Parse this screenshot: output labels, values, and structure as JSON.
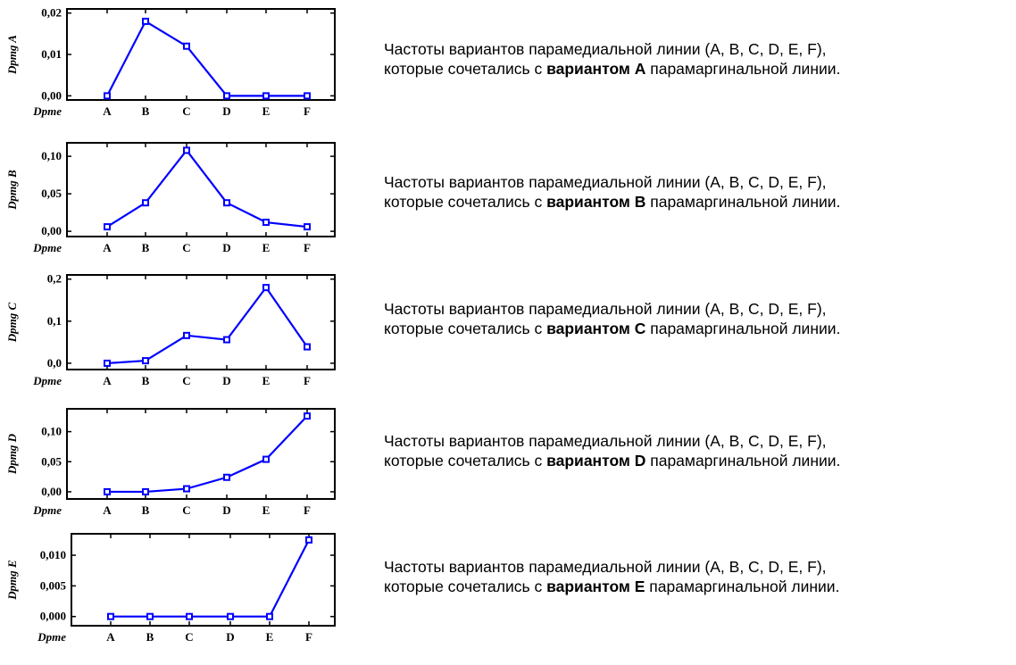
{
  "colors": {
    "series": "#0000ff",
    "axis": "#000000"
  },
  "chart_data": [
    {
      "type": "line",
      "categories": [
        "A",
        "B",
        "C",
        "D",
        "E",
        "F"
      ],
      "series": [
        {
          "values": [
            0.0,
            0.018,
            0.012,
            0.0,
            0.0,
            0.0
          ]
        }
      ],
      "xlabel": "Dpme",
      "ylabel": "Dpmg A",
      "ylim": [
        -0.001,
        0.021
      ],
      "yticks": [
        "0,00",
        "0,01",
        "0,02"
      ],
      "ytick_values": [
        0.0,
        0.01,
        0.02
      ],
      "grid": false,
      "caption": {
        "line1": "Частоты вариантов парамедиальной линии (A, B, C, D, E, F),",
        "pre": "которые сочетались с ",
        "bold": "вариантом A",
        "post": " парамаргинальной линии."
      }
    },
    {
      "type": "line",
      "categories": [
        "A",
        "B",
        "C",
        "D",
        "E",
        "F"
      ],
      "series": [
        {
          "values": [
            0.006,
            0.038,
            0.108,
            0.038,
            0.012,
            0.006
          ]
        }
      ],
      "xlabel": "Dpme",
      "ylabel": "Dpmg B",
      "ylim": [
        -0.007,
        0.118
      ],
      "yticks": [
        "0,00",
        "0,05",
        "0,10"
      ],
      "ytick_values": [
        0.0,
        0.05,
        0.1
      ],
      "grid": false,
      "caption": {
        "line1": "Частоты вариантов парамедиальной линии (A, B, C, D, E, F),",
        "pre": "которые сочетались с ",
        "bold": "вариантом B",
        "post": " парамаргинальной линии."
      }
    },
    {
      "type": "line",
      "categories": [
        "A",
        "B",
        "C",
        "D",
        "E",
        "F"
      ],
      "series": [
        {
          "values": [
            0.0,
            0.006,
            0.066,
            0.056,
            0.18,
            0.039
          ]
        }
      ],
      "xlabel": "Dpme",
      "ylabel": "Dpmg C",
      "ylim": [
        -0.015,
        0.21
      ],
      "yticks": [
        "0,0",
        "0,1",
        "0,2"
      ],
      "ytick_values": [
        0.0,
        0.1,
        0.2
      ],
      "grid": false,
      "caption": {
        "line1": "Частоты вариантов парамедиальной линии (A, B, C, D, E, F),",
        "pre": "которые сочетались с ",
        "bold": "вариантом C",
        "post": " парамаргинальной линии."
      }
    },
    {
      "type": "line",
      "categories": [
        "A",
        "B",
        "C",
        "D",
        "E",
        "F"
      ],
      "series": [
        {
          "values": [
            0.0,
            0.0,
            0.005,
            0.024,
            0.054,
            0.126
          ]
        }
      ],
      "xlabel": "Dpme",
      "ylabel": "Dpmg D",
      "ylim": [
        -0.012,
        0.138
      ],
      "yticks": [
        "0,00",
        "0,05",
        "0,10"
      ],
      "ytick_values": [
        0.0,
        0.05,
        0.1
      ],
      "grid": false,
      "caption": {
        "line1": "Частоты вариантов парамедиальной линии (A, B, C, D, E, F),",
        "pre": "которые сочетались с ",
        "bold": "вариантом D",
        "post": " парамаргинальной линии."
      }
    },
    {
      "type": "line",
      "categories": [
        "A",
        "B",
        "C",
        "D",
        "E",
        "F"
      ],
      "series": [
        {
          "values": [
            0.0,
            0.0,
            0.0,
            0.0,
            0.0,
            0.0125
          ]
        }
      ],
      "xlabel": "Dpme",
      "ylabel": "Dpmg E",
      "ylim": [
        -0.0015,
        0.0135
      ],
      "yticks": [
        "0,000",
        "0,005",
        "0,010"
      ],
      "ytick_values": [
        0.0,
        0.005,
        0.01
      ],
      "grid": false,
      "caption": {
        "line1": "Частоты вариантов парамедиальной линии (A, B, C, D, E, F),",
        "pre": "которые сочетались с ",
        "bold": "вариантом E",
        "post": " парамаргинальной линии."
      }
    }
  ]
}
